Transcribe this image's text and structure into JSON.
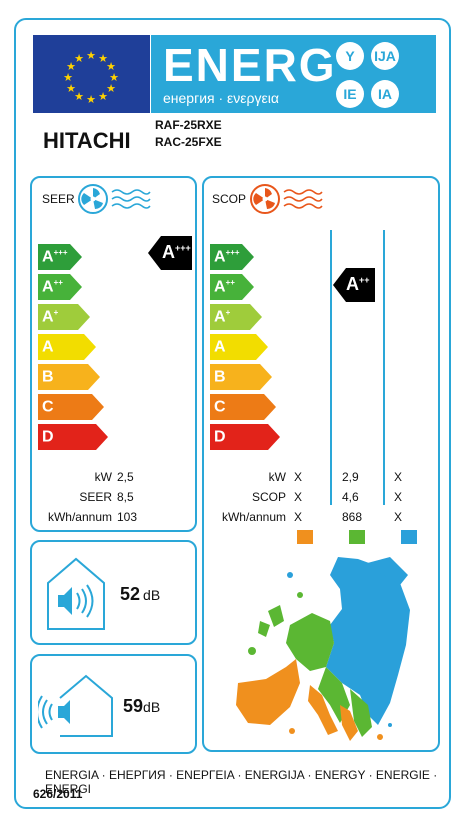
{
  "header": {
    "energ": "ENERG",
    "subtitle": "енергия · ενεργεια",
    "badges": [
      "Y",
      "IJA",
      "IE",
      "IA"
    ]
  },
  "brand": "HITACHI",
  "models": [
    "RAF-25RXE",
    "RAC-25FXE"
  ],
  "classes": [
    "A",
    "A",
    "A",
    "A",
    "B",
    "C",
    "D"
  ],
  "class_sups": [
    "+++",
    "++",
    "+",
    "",
    "",
    "",
    ""
  ],
  "class_colors": [
    "#2e9e3a",
    "#47b23a",
    "#9fcc3b",
    "#f2dd00",
    "#f7b21c",
    "#ed7b16",
    "#e2231a"
  ],
  "seer": {
    "title": "SEER",
    "indicator": "A",
    "indicator_sup": "+++",
    "rows": [
      {
        "label": "kW",
        "value": "2,5"
      },
      {
        "label": "SEER",
        "value": "8,5"
      },
      {
        "label": "kWh/annum",
        "value": "103"
      }
    ]
  },
  "scop": {
    "title": "SCOP",
    "indicator": "A",
    "indicator_sup": "++",
    "rows": [
      {
        "label": "kW",
        "values": [
          "X",
          "2,9",
          "X"
        ]
      },
      {
        "label": "SCOP",
        "values": [
          "X",
          "4,6",
          "X"
        ]
      },
      {
        "label": "kWh/annum",
        "values": [
          "X",
          "868",
          "X"
        ]
      }
    ],
    "zone_colors": [
      "#f0901e",
      "#5bb733",
      "#2aa0da"
    ]
  },
  "noise": {
    "indoor_value": "52",
    "outdoor_value": "59",
    "unit": "dB"
  },
  "footer": {
    "languages": "ENERGIA · ЕНЕРГИЯ · ΕΝΕΡΓΕΙΑ · ENERGIJA · ENERGY · ENERGIE · ENERGI",
    "regulation": "626/2011"
  },
  "colors": {
    "accent": "#2aa7d8",
    "eu_blue": "#1f3f99",
    "star": "#ffd200"
  }
}
